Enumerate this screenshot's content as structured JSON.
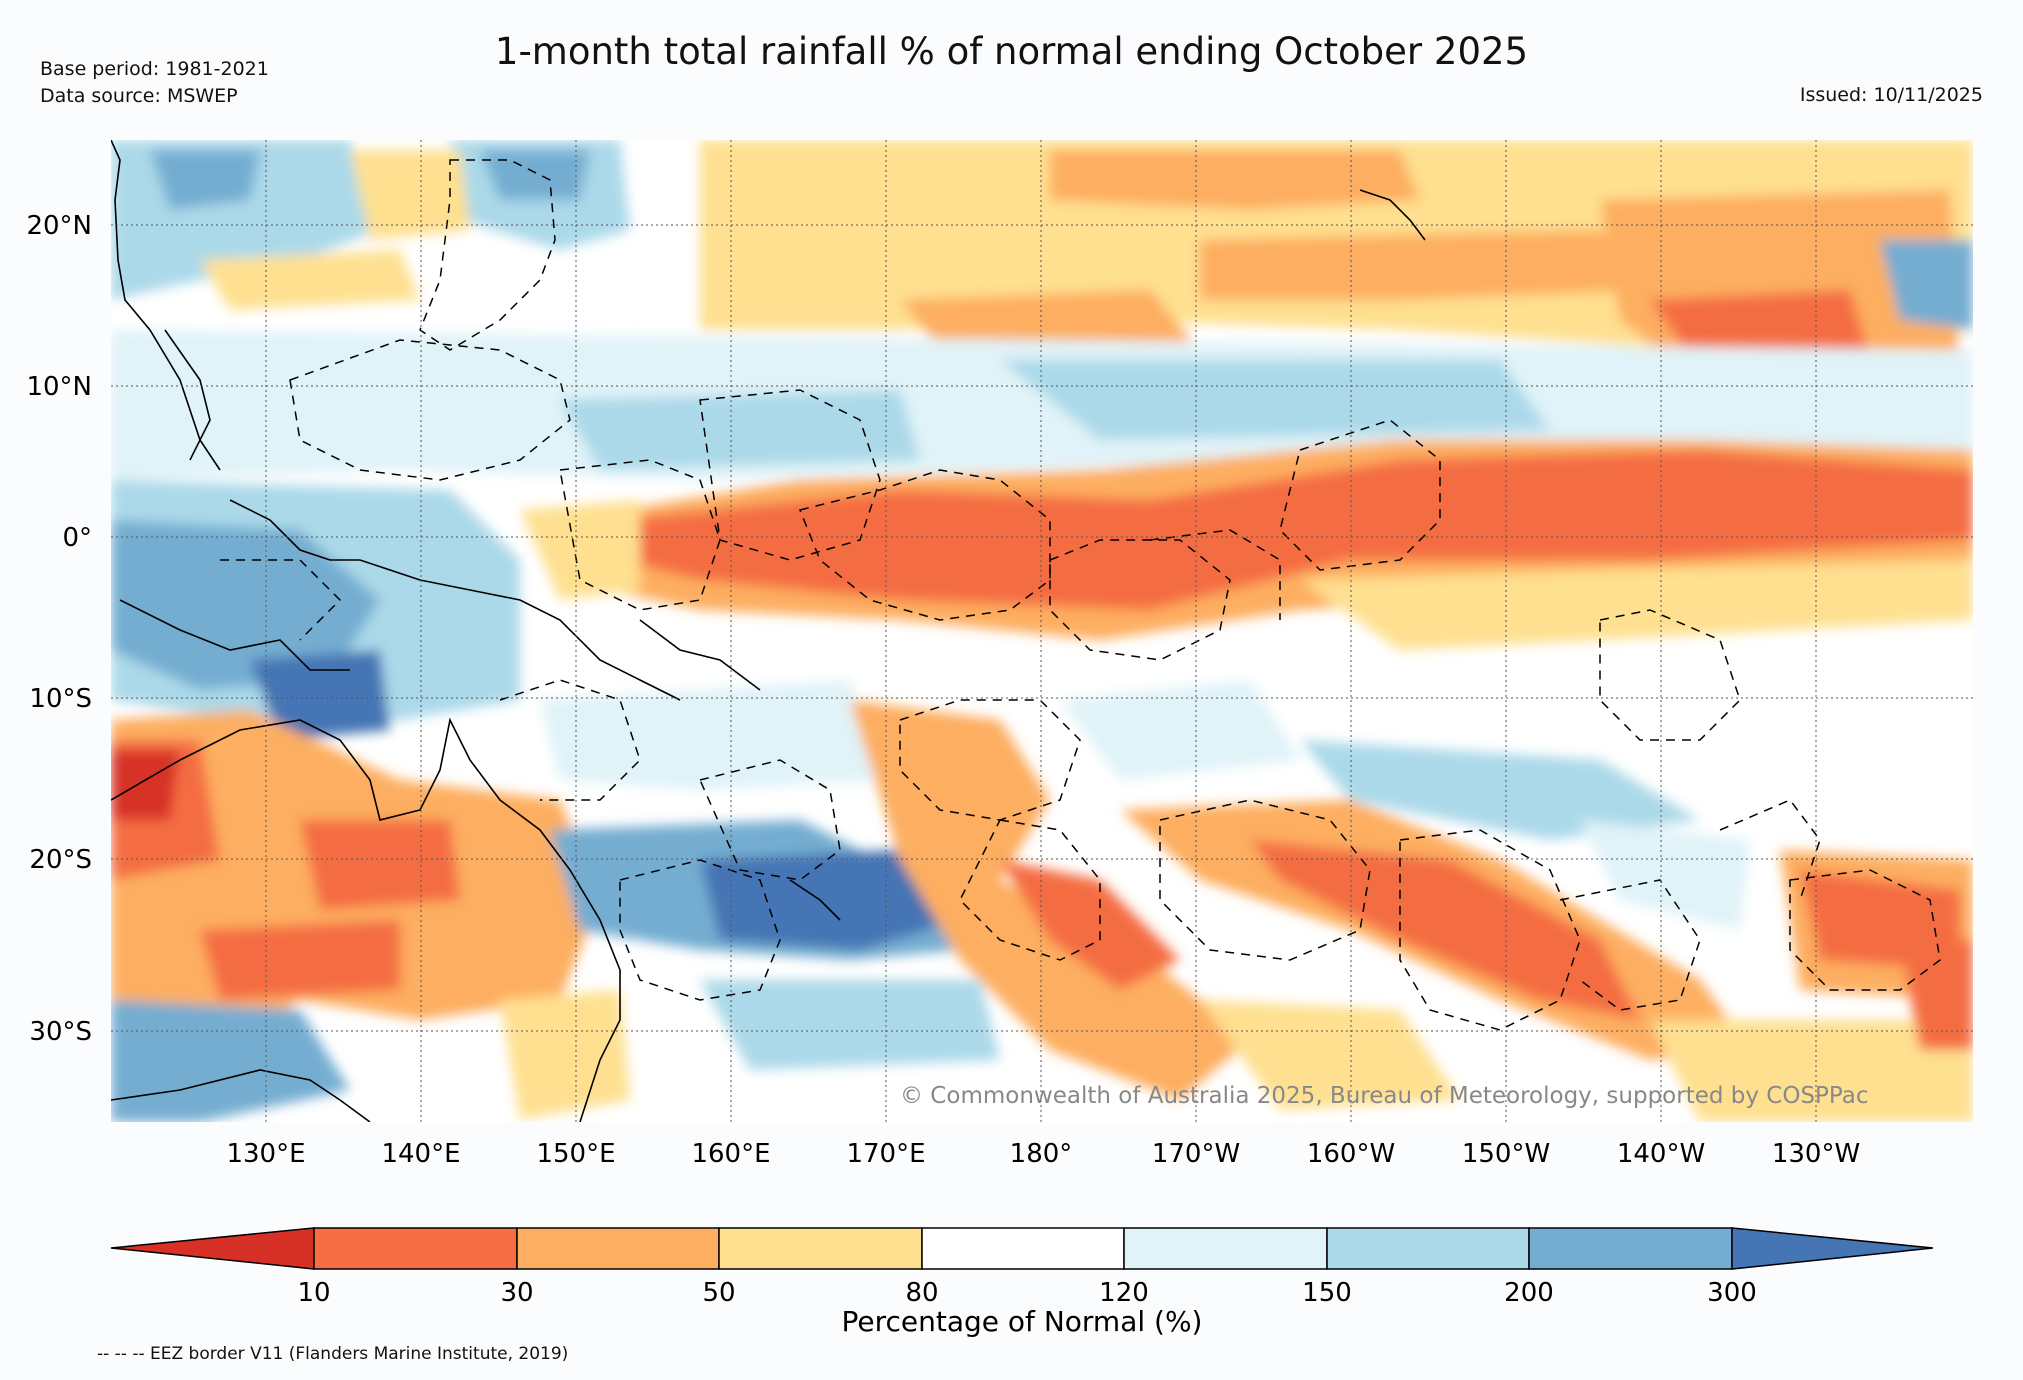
{
  "title": "1-month total rainfall % of normal ending October 2025",
  "base_period": "Base period: 1981-2021",
  "data_source": "Data source: MSWEP",
  "issued": "Issued: 10/11/2025",
  "copyright": "© Commonwealth of Australia 2025, Bureau of Meteorology, supported by COSPPac",
  "eez_note": "-- -- -- EEZ border V11 (Flanders Marine Institute, 2019)",
  "axes": {
    "lat_labels": [
      "20°N",
      "10°N",
      "0°",
      "10°S",
      "20°S",
      "30°S"
    ],
    "lat_values": [
      20,
      10,
      0,
      -10,
      -20,
      -30
    ],
    "lon_labels": [
      "130°E",
      "140°E",
      "150°E",
      "160°E",
      "170°E",
      "180°",
      "170°W",
      "160°W",
      "150°W",
      "140°W",
      "130°W"
    ],
    "lon_values": [
      130,
      140,
      150,
      160,
      170,
      180,
      190,
      200,
      210,
      220,
      230
    ],
    "lat_range": [
      -36,
      25
    ],
    "lon_range": [
      120,
      240
    ]
  },
  "colorbar": {
    "title": "Percentage of Normal (%)",
    "ticks": [
      "10",
      "30",
      "50",
      "80",
      "120",
      "150",
      "200",
      "300"
    ],
    "colors": [
      "#d73027",
      "#f46d43",
      "#fdae61",
      "#fee090",
      "#ffffff",
      "#e0f3f8",
      "#abd9e9",
      "#74add1",
      "#4575b4"
    ]
  },
  "colors": {
    "very_dry": "#d73027",
    "dry": "#f46d43",
    "below": "#fdae61",
    "slightly_below": "#fee090",
    "normal": "#ffffff",
    "slightly_above": "#e0f3f8",
    "above": "#abd9e9",
    "wet": "#74add1",
    "very_wet": "#4575b4"
  }
}
